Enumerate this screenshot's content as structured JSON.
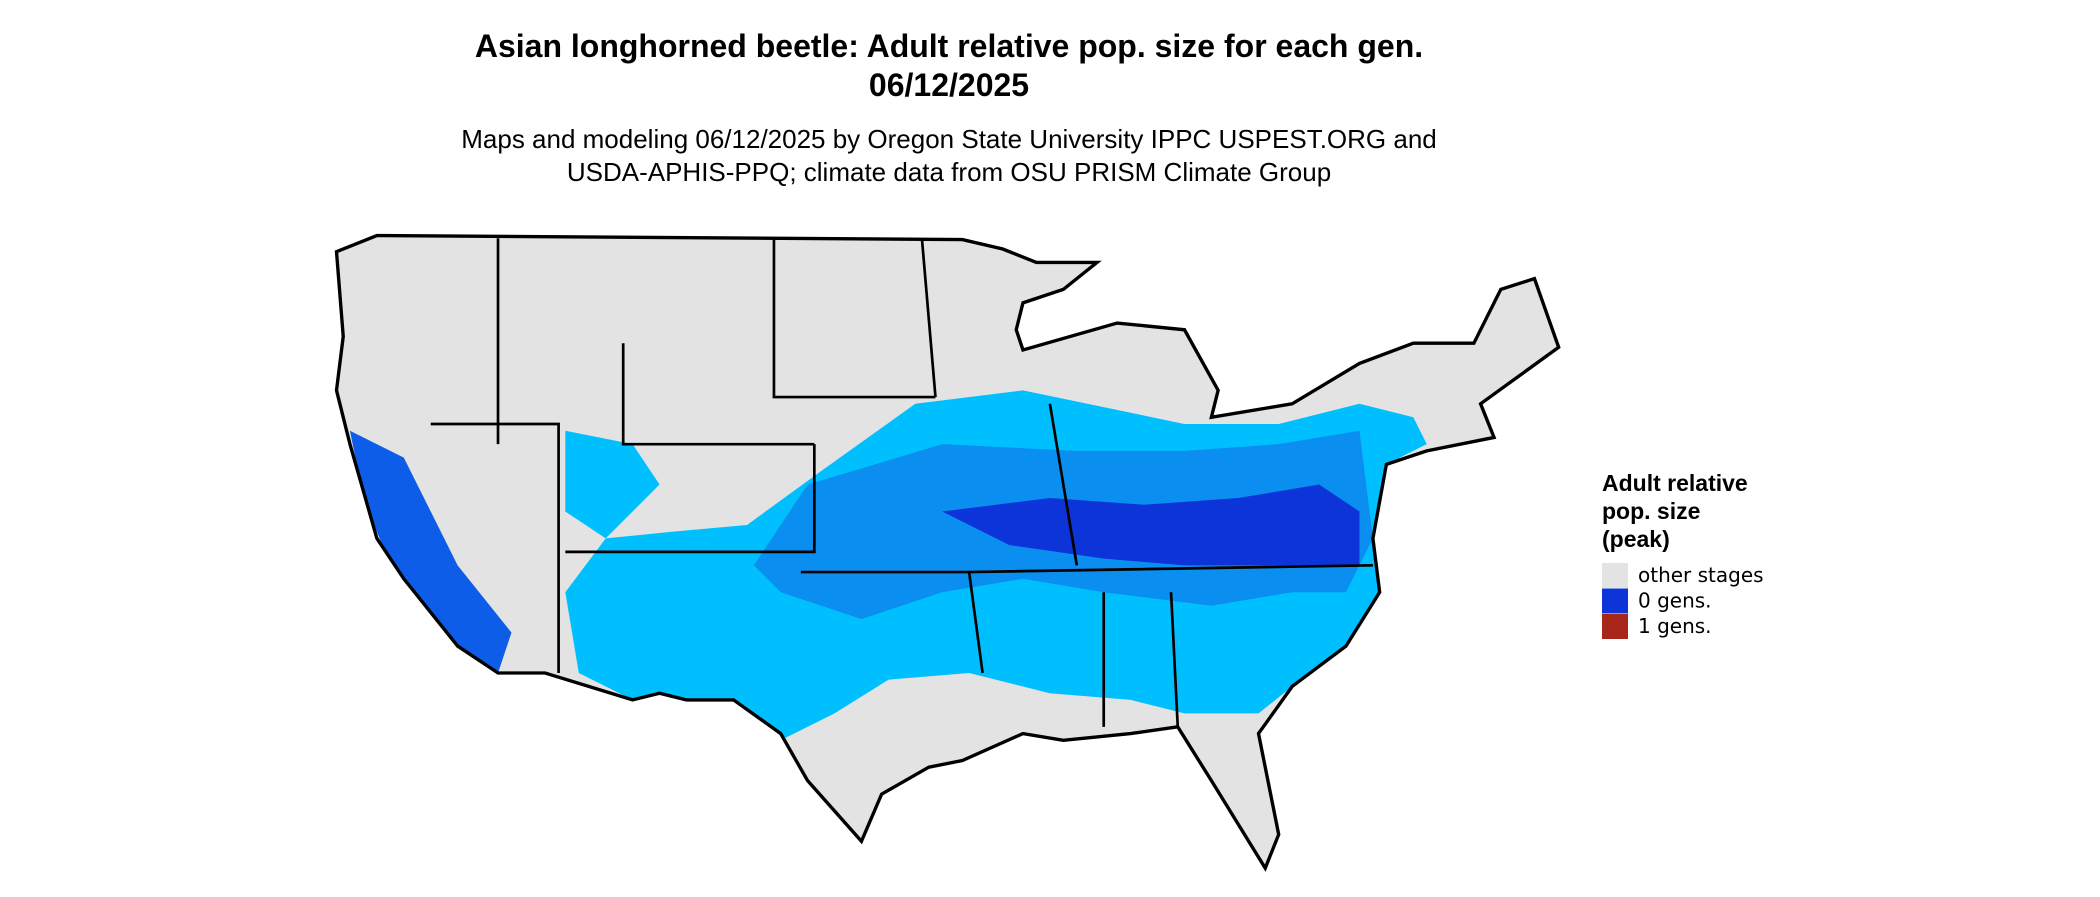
{
  "header": {
    "title_lines": [
      "Asian longhorned beetle: Adult relative pop. size for each gen.",
      "06/12/2025"
    ],
    "subtitle_lines": [
      "Maps and modeling 06/12/2025 by Oregon State University IPPC USPEST.ORG and",
      "USDA-APHIS-PPQ; climate data from OSU PRISM Climate Group"
    ]
  },
  "legend": {
    "title_lines": [
      "Adult relative",
      "pop. size",
      "(peak)"
    ],
    "items": [
      {
        "label": "other stages",
        "color": "#e3e3e3"
      },
      {
        "label": "0 gens.",
        "color": "#0d34d8"
      },
      {
        "label": "1 gens.",
        "color": "#a8261a"
      }
    ]
  }
}
